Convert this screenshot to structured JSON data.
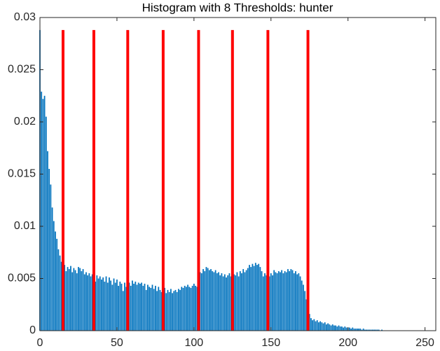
{
  "chart_data": {
    "type": "bar",
    "title": "Histogram with 8 Thresholds: hunter",
    "x": [
      0,
      1,
      2,
      3,
      4,
      5,
      6,
      7,
      8,
      9,
      10,
      11,
      12,
      13,
      14,
      15,
      16,
      17,
      18,
      19,
      20,
      21,
      22,
      23,
      24,
      25,
      26,
      27,
      28,
      29,
      30,
      31,
      32,
      33,
      34,
      35,
      36,
      37,
      38,
      39,
      40,
      41,
      42,
      43,
      44,
      45,
      46,
      47,
      48,
      49,
      50,
      51,
      52,
      53,
      54,
      55,
      56,
      57,
      58,
      59,
      60,
      61,
      62,
      63,
      64,
      65,
      66,
      67,
      68,
      69,
      70,
      71,
      72,
      73,
      74,
      75,
      76,
      77,
      78,
      79,
      80,
      81,
      82,
      83,
      84,
      85,
      86,
      87,
      88,
      89,
      90,
      91,
      92,
      93,
      94,
      95,
      96,
      97,
      98,
      99,
      100,
      101,
      102,
      103,
      104,
      105,
      106,
      107,
      108,
      109,
      110,
      111,
      112,
      113,
      114,
      115,
      116,
      117,
      118,
      119,
      120,
      121,
      122,
      123,
      124,
      125,
      126,
      127,
      128,
      129,
      130,
      131,
      132,
      133,
      134,
      135,
      136,
      137,
      138,
      139,
      140,
      141,
      142,
      143,
      144,
      145,
      146,
      147,
      148,
      149,
      150,
      151,
      152,
      153,
      154,
      155,
      156,
      157,
      158,
      159,
      160,
      161,
      162,
      163,
      164,
      165,
      166,
      167,
      168,
      169,
      170,
      171,
      172,
      173,
      174,
      175,
      176,
      177,
      178,
      179,
      180,
      181,
      182,
      183,
      184,
      185,
      186,
      187,
      188,
      189,
      190,
      191,
      192,
      193,
      194,
      195,
      196,
      197,
      198,
      199,
      200,
      201,
      202,
      203,
      204,
      205,
      206,
      207,
      208,
      209,
      210,
      211,
      212,
      213,
      214,
      215,
      216,
      217,
      218,
      219,
      220,
      221,
      222,
      223,
      224,
      225,
      226,
      227,
      228,
      229,
      230,
      231,
      232,
      233,
      234,
      235,
      236,
      237,
      238,
      239,
      240,
      241,
      242,
      243,
      244,
      245,
      246,
      247,
      248,
      249,
      250,
      251,
      252,
      253,
      254,
      255
    ],
    "values": [
      0.0288,
      0.0229,
      0.0222,
      0.0225,
      0.0205,
      0.0172,
      0.0155,
      0.014,
      0.0118,
      0.0105,
      0.0095,
      0.0088,
      0.0078,
      0.0072,
      0.0066,
      0.0064,
      0.0063,
      0.0057,
      0.0061,
      0.0059,
      0.0062,
      0.0056,
      0.006,
      0.0058,
      0.0055,
      0.0061,
      0.006,
      0.0057,
      0.0059,
      0.0054,
      0.0056,
      0.0053,
      0.0055,
      0.0052,
      0.0054,
      0.0051,
      0.0047,
      0.0053,
      0.005,
      0.0052,
      0.0049,
      0.0051,
      0.0047,
      0.0052,
      0.0046,
      0.0051,
      0.0048,
      0.0044,
      0.005,
      0.0046,
      0.0049,
      0.0043,
      0.0047,
      0.0045,
      0.0038,
      0.0046,
      0.0042,
      0.004,
      0.0046,
      0.0043,
      0.0048,
      0.0045,
      0.0047,
      0.0044,
      0.0046,
      0.0045,
      0.0046,
      0.0043,
      0.0045,
      0.0039,
      0.0044,
      0.0042,
      0.0041,
      0.0044,
      0.004,
      0.0043,
      0.0038,
      0.0042,
      0.0039,
      0.0037,
      0.0035,
      0.0041,
      0.0036,
      0.0039,
      0.0037,
      0.004,
      0.0036,
      0.0038,
      0.0039,
      0.0037,
      0.004,
      0.0039,
      0.0042,
      0.0041,
      0.0043,
      0.0042,
      0.0044,
      0.0042,
      0.0041,
      0.0043,
      0.0045,
      0.0043,
      0.0042,
      0.0053,
      0.0056,
      0.0055,
      0.0059,
      0.0057,
      0.0061,
      0.006,
      0.0058,
      0.0059,
      0.0057,
      0.0056,
      0.0058,
      0.0055,
      0.0056,
      0.0053,
      0.0055,
      0.0052,
      0.0054,
      0.0051,
      0.0053,
      0.0055,
      0.0052,
      0.0051,
      0.0054,
      0.0053,
      0.0056,
      0.0052,
      0.0057,
      0.0055,
      0.0059,
      0.0056,
      0.0058,
      0.006,
      0.0063,
      0.0061,
      0.0064,
      0.0062,
      0.0065,
      0.0063,
      0.0064,
      0.0061,
      0.0057,
      0.0052,
      0.0055,
      0.0053,
      0.0056,
      0.0052,
      0.0055,
      0.0053,
      0.0058,
      0.0056,
      0.0055,
      0.0057,
      0.0056,
      0.0058,
      0.0055,
      0.0057,
      0.0056,
      0.0059,
      0.0057,
      0.0059,
      0.0058,
      0.0055,
      0.0057,
      0.0054,
      0.0055,
      0.0052,
      0.0048,
      0.0044,
      0.0038,
      0.003,
      0.0022,
      0.0016,
      0.0012,
      0.001,
      0.0011,
      0.0009,
      0.001,
      0.0008,
      0.0009,
      0.0008,
      0.0007,
      0.0008,
      0.0006,
      0.0007,
      0.0006,
      0.0005,
      0.0006,
      0.0005,
      0.0005,
      0.0004,
      0.0005,
      0.0004,
      0.0004,
      0.0003,
      0.0004,
      0.0003,
      0.0003,
      0.0003,
      0.0002,
      0.0003,
      0.0002,
      0.0002,
      0.0002,
      0.0002,
      0.0002,
      0.0001,
      0.0002,
      0.0001,
      0.0001,
      0.0001,
      0.0001,
      0.0001,
      0.0001,
      0.0001,
      0.0001,
      0.0001,
      0.0001,
      0,
      0.0001,
      0,
      0,
      0,
      0,
      0,
      0,
      0,
      0,
      0,
      0,
      0,
      0,
      0,
      0,
      0,
      0,
      0,
      0,
      0,
      0,
      0,
      0,
      0,
      0,
      0,
      0,
      0,
      0,
      0,
      0,
      0,
      0,
      0
    ],
    "color": "#0072bd",
    "thresholds": [
      15,
      35,
      57,
      80,
      103,
      125,
      148,
      174
    ],
    "threshold_height": 0.0288,
    "threshold_color": "#ff0000",
    "xlim": [
      0,
      257
    ],
    "xticks": [
      0,
      50,
      100,
      150,
      200,
      250
    ],
    "ylim": [
      0,
      0.03
    ],
    "yticks": [
      0,
      0.005,
      0.01,
      0.015,
      0.02,
      0.025,
      0.03
    ],
    "grid": false
  }
}
